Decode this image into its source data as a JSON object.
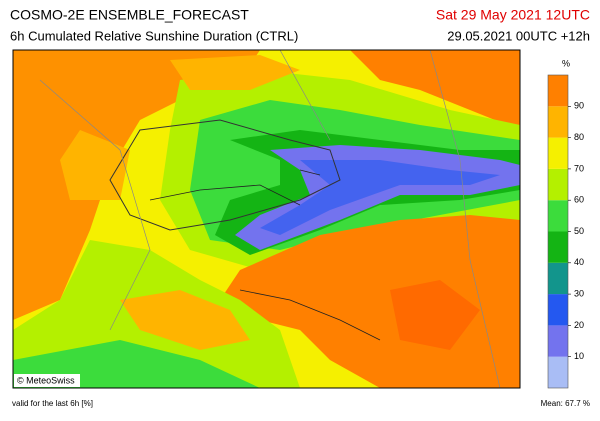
{
  "header": {
    "title": "COSMO-2E ENSEMBLE_FORECAST",
    "subtitle": "6h Cumulated Relative Sunshine Duration (CTRL)",
    "valid_time": "Sat 29 May 2021 12UTC",
    "run": "29.05.2021 00UTC +12h"
  },
  "colorbar": {
    "unit": "%",
    "levels": [
      0,
      10,
      20,
      30,
      40,
      50,
      60,
      70,
      80,
      90,
      100
    ],
    "colors": [
      "#a9bdf5",
      "#7373ee",
      "#2458f0",
      "#12958c",
      "#14b414",
      "#3cdc3c",
      "#b4f000",
      "#f5f000",
      "#ffb400",
      "#ff8000"
    ],
    "ticks": [
      10,
      20,
      30,
      40,
      50,
      60,
      70,
      80,
      90
    ]
  },
  "copyright": "© MeteoSwiss",
  "footer": {
    "note": "valid for the last 6h [%]",
    "mean": "Mean:  67.7 %"
  }
}
